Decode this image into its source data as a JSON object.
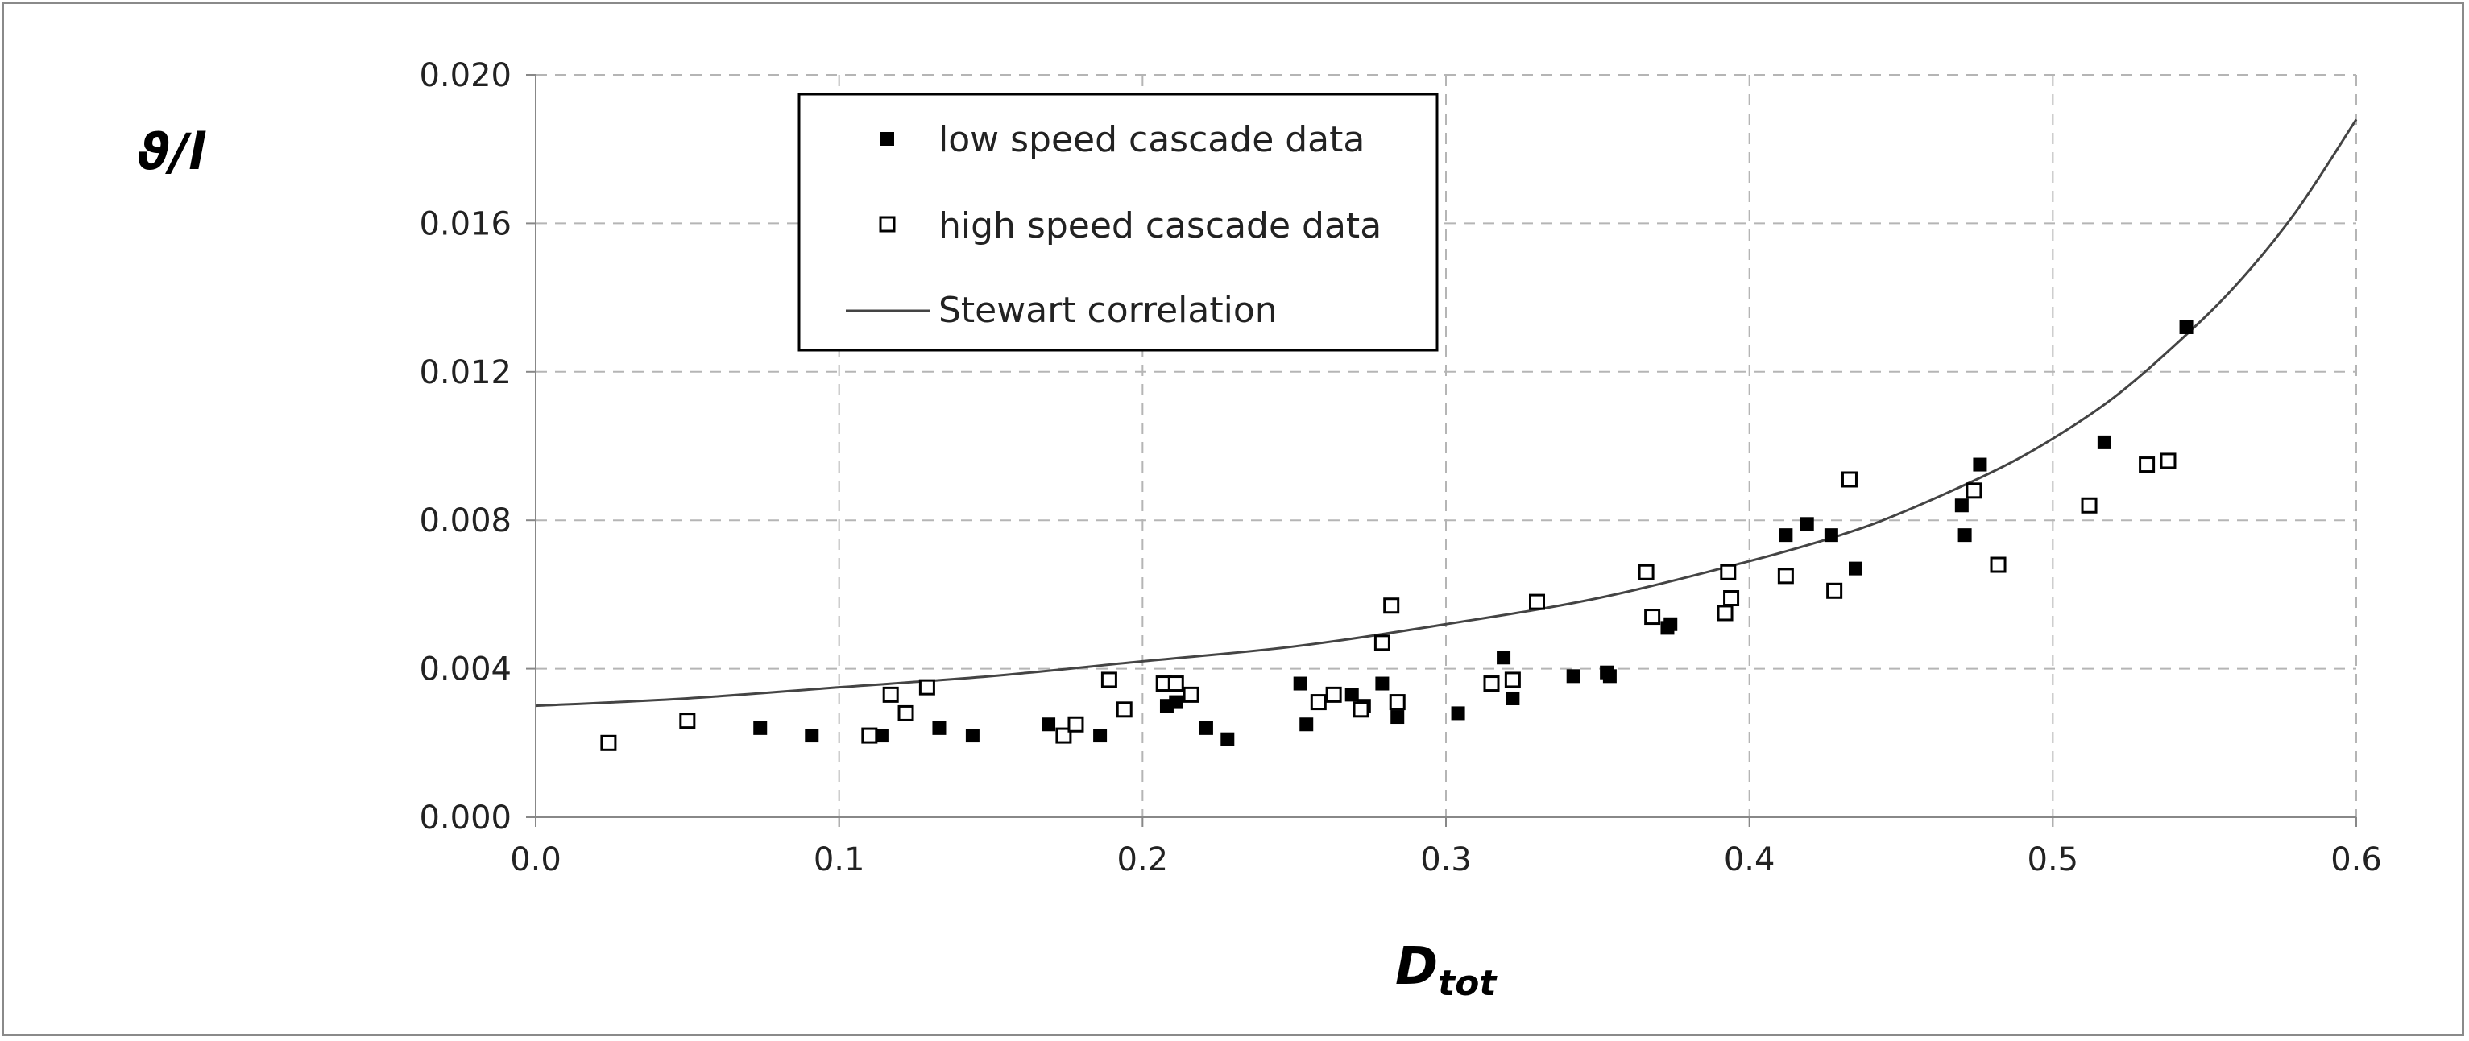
{
  "chart_data": {
    "type": "scatter",
    "title": "",
    "xlabel_main": "D",
    "xlabel_sub": "tot",
    "ylabel": "ϑ/l",
    "xlim": [
      0.0,
      0.6
    ],
    "ylim": [
      0.0,
      0.02
    ],
    "xticks": [
      "0.0",
      "0.1",
      "0.2",
      "0.3",
      "0.4",
      "0.5",
      "0.6"
    ],
    "yticks": [
      "0.000",
      "0.004",
      "0.008",
      "0.012",
      "0.016",
      "0.020"
    ],
    "grid": true,
    "legend_position": "top-left",
    "series": [
      {
        "name": "low speed cascade data",
        "marker": "filled-square",
        "color": "#000000",
        "points": [
          [
            0.074,
            0.0024
          ],
          [
            0.091,
            0.0022
          ],
          [
            0.114,
            0.0022
          ],
          [
            0.133,
            0.0024
          ],
          [
            0.144,
            0.0022
          ],
          [
            0.169,
            0.0025
          ],
          [
            0.186,
            0.0022
          ],
          [
            0.208,
            0.003
          ],
          [
            0.211,
            0.0031
          ],
          [
            0.221,
            0.0024
          ],
          [
            0.228,
            0.0021
          ],
          [
            0.252,
            0.0036
          ],
          [
            0.254,
            0.0025
          ],
          [
            0.269,
            0.0033
          ],
          [
            0.273,
            0.003
          ],
          [
            0.279,
            0.0036
          ],
          [
            0.284,
            0.0027
          ],
          [
            0.304,
            0.0028
          ],
          [
            0.319,
            0.0043
          ],
          [
            0.322,
            0.0032
          ],
          [
            0.342,
            0.0038
          ],
          [
            0.353,
            0.0039
          ],
          [
            0.354,
            0.0038
          ],
          [
            0.373,
            0.0051
          ],
          [
            0.374,
            0.0052
          ],
          [
            0.412,
            0.0076
          ],
          [
            0.419,
            0.0079
          ],
          [
            0.427,
            0.0076
          ],
          [
            0.435,
            0.0067
          ],
          [
            0.47,
            0.0084
          ],
          [
            0.471,
            0.0076
          ],
          [
            0.476,
            0.0095
          ],
          [
            0.517,
            0.0101
          ],
          [
            0.544,
            0.0132
          ]
        ]
      },
      {
        "name": "high speed cascade data",
        "marker": "open-square",
        "color": "#000000",
        "points": [
          [
            0.024,
            0.002
          ],
          [
            0.05,
            0.0026
          ],
          [
            0.11,
            0.0022
          ],
          [
            0.117,
            0.0033
          ],
          [
            0.122,
            0.0028
          ],
          [
            0.129,
            0.0035
          ],
          [
            0.174,
            0.0022
          ],
          [
            0.178,
            0.0025
          ],
          [
            0.189,
            0.0037
          ],
          [
            0.194,
            0.0029
          ],
          [
            0.207,
            0.0036
          ],
          [
            0.211,
            0.0036
          ],
          [
            0.216,
            0.0033
          ],
          [
            0.258,
            0.0031
          ],
          [
            0.263,
            0.0033
          ],
          [
            0.272,
            0.0029
          ],
          [
            0.279,
            0.0047
          ],
          [
            0.282,
            0.0057
          ],
          [
            0.284,
            0.0031
          ],
          [
            0.315,
            0.0036
          ],
          [
            0.322,
            0.0037
          ],
          [
            0.33,
            0.0058
          ],
          [
            0.366,
            0.0066
          ],
          [
            0.368,
            0.0054
          ],
          [
            0.392,
            0.0055
          ],
          [
            0.393,
            0.0066
          ],
          [
            0.394,
            0.0059
          ],
          [
            0.412,
            0.0065
          ],
          [
            0.428,
            0.0061
          ],
          [
            0.433,
            0.0091
          ],
          [
            0.474,
            0.0088
          ],
          [
            0.482,
            0.0068
          ],
          [
            0.512,
            0.0084
          ],
          [
            0.531,
            0.0095
          ],
          [
            0.538,
            0.0096
          ]
        ]
      },
      {
        "name": "Stewart correlation",
        "marker": "line",
        "color": "#444444",
        "points": [
          [
            0.0,
            0.003
          ],
          [
            0.05,
            0.0032
          ],
          [
            0.1,
            0.0035
          ],
          [
            0.15,
            0.0038
          ],
          [
            0.2,
            0.0042
          ],
          [
            0.25,
            0.0046
          ],
          [
            0.3,
            0.0052
          ],
          [
            0.35,
            0.0059
          ],
          [
            0.4,
            0.0069
          ],
          [
            0.43,
            0.0076
          ],
          [
            0.45,
            0.0082
          ],
          [
            0.48,
            0.0093
          ],
          [
            0.5,
            0.0102
          ],
          [
            0.52,
            0.0113
          ],
          [
            0.54,
            0.0127
          ],
          [
            0.56,
            0.0143
          ],
          [
            0.58,
            0.0163
          ],
          [
            0.6,
            0.0188
          ]
        ]
      }
    ]
  }
}
